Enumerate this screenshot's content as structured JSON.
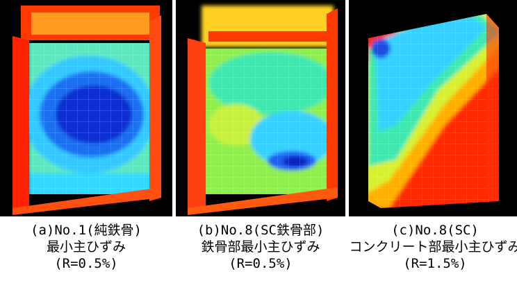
{
  "panels": [
    {
      "caption": [
        "(a)No.1(純鉄骨)",
        "最小主ひずみ",
        "(R=0.5%)"
      ]
    },
    {
      "caption": [
        "(b)No.8(SC鉄骨部)",
        "鉄骨部最小主ひずみ",
        "(R=0.5%)"
      ]
    },
    {
      "caption": [
        "(c)No.8(SC)",
        "コンクリート部最小主ひずみ",
        "(R=1.5%)"
      ]
    }
  ]
}
